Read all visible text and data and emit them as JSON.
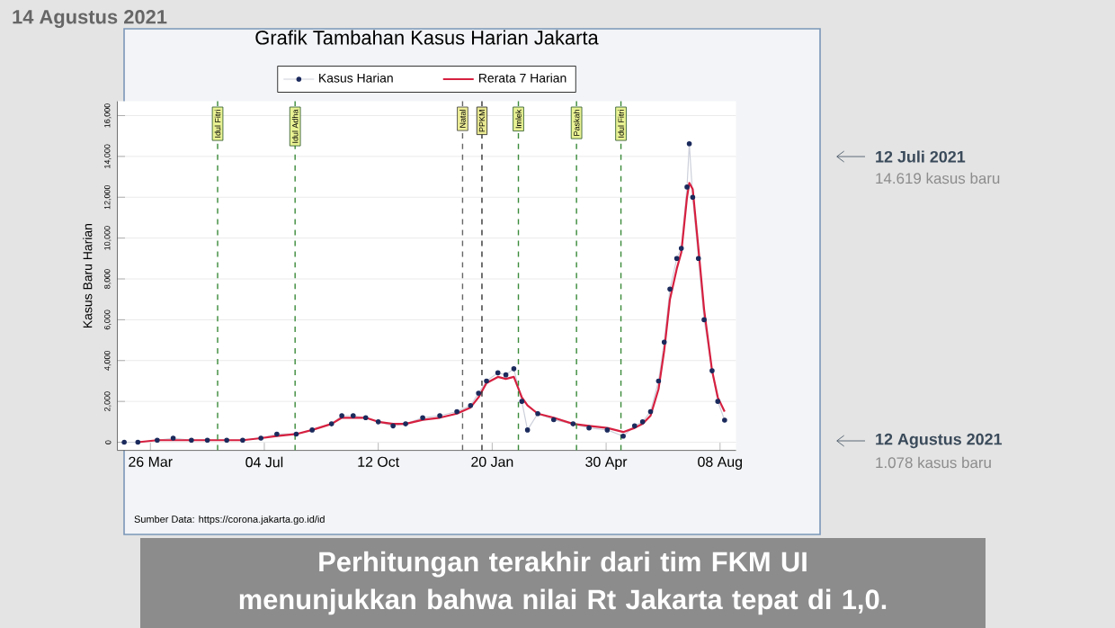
{
  "chart_data": {
    "type": "line",
    "title": "Grafik Tambahan Kasus Harian Jakarta",
    "ylabel": "Kasus Baru Harian",
    "x": [
      "2020-03-03",
      "2020-03-15",
      "2020-04-01",
      "2020-04-15",
      "2020-05-01",
      "2020-05-15",
      "2020-06-01",
      "2020-06-15",
      "2020-07-01",
      "2020-07-15",
      "2020-08-01",
      "2020-08-15",
      "2020-09-01",
      "2020-09-10",
      "2020-09-20",
      "2020-10-01",
      "2020-10-12",
      "2020-10-25",
      "2020-11-05",
      "2020-11-20",
      "2020-12-05",
      "2020-12-20",
      "2021-01-01",
      "2021-01-08",
      "2021-01-15",
      "2021-01-25",
      "2021-02-01",
      "2021-02-08",
      "2021-02-15",
      "2021-02-20",
      "2021-03-01",
      "2021-03-15",
      "2021-04-01",
      "2021-04-15",
      "2021-05-01",
      "2021-05-15",
      "2021-05-25",
      "2021-06-01",
      "2021-06-08",
      "2021-06-15",
      "2021-06-20",
      "2021-06-25",
      "2021-07-01",
      "2021-07-05",
      "2021-07-10",
      "2021-07-12",
      "2021-07-15",
      "2021-07-20",
      "2021-07-25",
      "2021-08-01",
      "2021-08-06",
      "2021-08-12"
    ],
    "series": [
      {
        "name": "Kasus Harian",
        "color": "#1b2a5c",
        "marker": "circle",
        "values": [
          0,
          0,
          100,
          200,
          100,
          100,
          100,
          100,
          200,
          400,
          400,
          600,
          900,
          1300,
          1300,
          1200,
          1000,
          800,
          900,
          1200,
          1300,
          1500,
          1800,
          2400,
          3000,
          3400,
          3300,
          3600,
          2000,
          600,
          1400,
          1100,
          900,
          700,
          600,
          300,
          800,
          1000,
          1500,
          3000,
          4900,
          7500,
          9000,
          9500,
          12500,
          14619,
          12000,
          9000,
          6000,
          3500,
          2000,
          1078
        ]
      },
      {
        "name": "Rerata 7 Harian",
        "color": "#d62040",
        "marker": "none",
        "values": [
          null,
          0,
          100,
          100,
          100,
          100,
          100,
          100,
          200,
          300,
          400,
          600,
          900,
          1200,
          1200,
          1200,
          1000,
          900,
          900,
          1100,
          1200,
          1400,
          1700,
          2200,
          2900,
          3200,
          3100,
          3200,
          2200,
          1800,
          1400,
          1200,
          900,
          800,
          700,
          500,
          700,
          900,
          1300,
          2600,
          4500,
          7000,
          8500,
          9300,
          12000,
          12700,
          12400,
          9500,
          6500,
          3500,
          2200,
          1500
        ]
      }
    ],
    "xlim": [
      "2020-02-26",
      "2021-08-22"
    ],
    "xticks": [
      {
        "value": "2020-03-26",
        "label": "26 Mar"
      },
      {
        "value": "2020-07-04",
        "label": "04 Jul"
      },
      {
        "value": "2020-10-12",
        "label": "12 Oct"
      },
      {
        "value": "2021-01-20",
        "label": "20 Jan"
      },
      {
        "value": "2021-04-30",
        "label": "30 Apr"
      },
      {
        "value": "2021-08-08",
        "label": "08 Aug"
      }
    ],
    "ylim": [
      -400,
      16700
    ],
    "yticks": [
      0,
      {
        "value": 2000,
        "label": "2,000"
      },
      {
        "value": 4000,
        "label": "4,000"
      },
      {
        "value": 6000,
        "label": "6,000"
      },
      {
        "value": 8000,
        "label": "8,000"
      },
      {
        "value": 10000,
        "label": "10,000"
      },
      {
        "value": 12000,
        "label": "12,000"
      },
      {
        "value": 14000,
        "label": "14,000"
      },
      {
        "value": 16000,
        "label": "16,000"
      }
    ],
    "ref_lines": [
      {
        "axis": "x",
        "value": "2020-05-24",
        "label": "Idul Fitri",
        "color": "#3a8a3a",
        "line_style": "dashed"
      },
      {
        "axis": "x",
        "value": "2020-07-31",
        "label": "Idul Adha",
        "color": "#3a8a3a",
        "line_style": "dashed"
      },
      {
        "axis": "x",
        "value": "2020-12-25",
        "label": "Natal",
        "color": "#666666",
        "line_style": "dashed"
      },
      {
        "axis": "x",
        "value": "2021-01-11",
        "label": "PPKM",
        "color": "#333333",
        "line_style": "dashed"
      },
      {
        "axis": "x",
        "value": "2021-02-12",
        "label": "Imlek",
        "color": "#3a8a3a",
        "line_style": "dashed"
      },
      {
        "axis": "x",
        "value": "2021-04-04",
        "label": "Paskah",
        "color": "#3a8a3a",
        "line_style": "dashed"
      },
      {
        "axis": "x",
        "value": "2021-05-13",
        "label": "Idul Fitri",
        "color": "#3a8a3a",
        "line_style": "dashed"
      }
    ],
    "grid": "y",
    "legend": "top",
    "annotations": [
      "14 Agustus 2021",
      "Sumber Data: https://corona.jakarta.go.id/id",
      "12 Juli 2021",
      "14.619 kasus baru",
      "12 Agustus 2021",
      "1.078 kasus baru",
      "Perhitungan terakhir dari tim FKM UI menunjukkan bahwa nilai Rt Jakarta tepat di 1,0."
    ]
  }
}
